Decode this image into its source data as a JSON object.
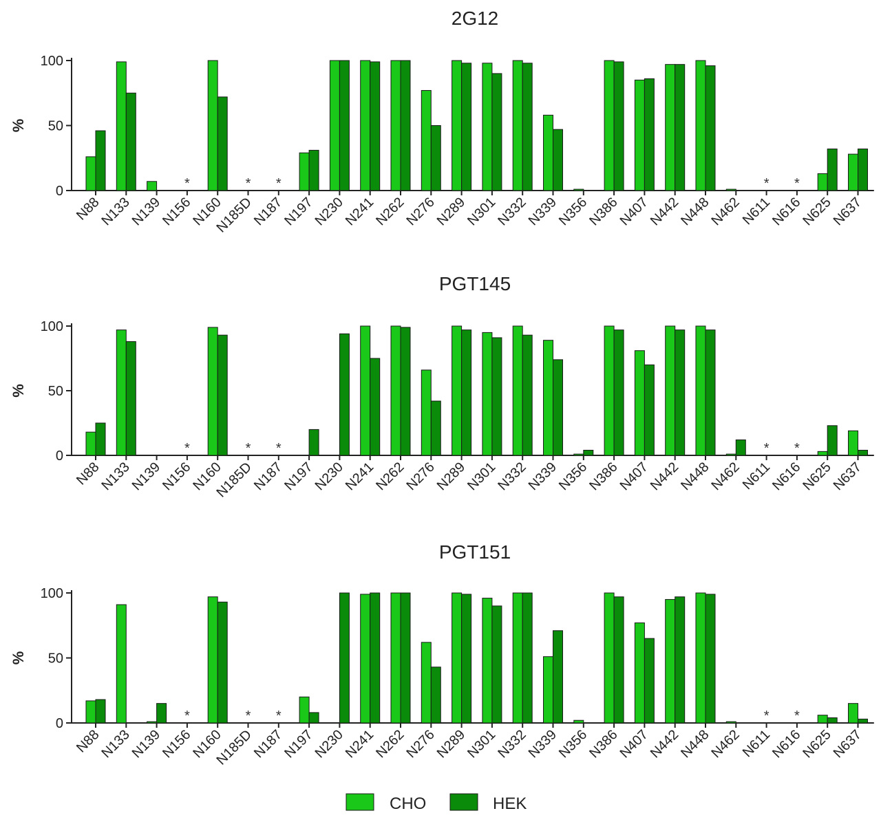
{
  "chart_data": [
    {
      "type": "bar",
      "title": "2G12",
      "ylabel": "%",
      "xlabel": "",
      "ylim": [
        0,
        100
      ],
      "yticks": [
        0,
        50,
        100
      ],
      "categories": [
        "N88",
        "N133",
        "N139",
        "N156",
        "N160",
        "N185D",
        "N187",
        "N197",
        "N230",
        "N241",
        "N262",
        "N276",
        "N289",
        "N301",
        "N332",
        "N339",
        "N356",
        "N386",
        "N407",
        "N442",
        "N448",
        "N462",
        "N611",
        "N616",
        "N625",
        "N637"
      ],
      "series": [
        {
          "name": "CHO",
          "values": [
            26,
            99,
            7,
            0,
            100,
            0,
            0,
            29,
            100,
            100,
            100,
            77,
            100,
            98,
            100,
            58,
            1,
            100,
            85,
            97,
            100,
            1,
            0,
            0,
            13,
            28
          ]
        },
        {
          "name": "HEK",
          "values": [
            46,
            75,
            0,
            0,
            72,
            0,
            0,
            31,
            100,
            99,
            100,
            50,
            98,
            90,
            98,
            47,
            0,
            99,
            86,
            97,
            96,
            0,
            0,
            0,
            32,
            32
          ]
        }
      ],
      "annotations": [
        {
          "category": "N156",
          "text": "*"
        },
        {
          "category": "N185D",
          "text": "*"
        },
        {
          "category": "N187",
          "text": "*"
        },
        {
          "category": "N611",
          "text": "*"
        },
        {
          "category": "N616",
          "text": "*"
        }
      ]
    },
    {
      "type": "bar",
      "title": "PGT145",
      "ylabel": "%",
      "xlabel": "",
      "ylim": [
        0,
        100
      ],
      "yticks": [
        0,
        50,
        100
      ],
      "categories": [
        "N88",
        "N133",
        "N139",
        "N156",
        "N160",
        "N185D",
        "N187",
        "N197",
        "N230",
        "N241",
        "N262",
        "N276",
        "N289",
        "N301",
        "N332",
        "N339",
        "N356",
        "N386",
        "N407",
        "N442",
        "N448",
        "N462",
        "N611",
        "N616",
        "N625",
        "N637"
      ],
      "series": [
        {
          "name": "CHO",
          "values": [
            18,
            97,
            0,
            0,
            99,
            0,
            0,
            0,
            0,
            100,
            100,
            66,
            100,
            95,
            100,
            89,
            1,
            100,
            81,
            100,
            100,
            1,
            0,
            0,
            3,
            19
          ]
        },
        {
          "name": "HEK",
          "values": [
            25,
            88,
            0,
            0,
            93,
            0,
            0,
            20,
            94,
            75,
            99,
            42,
            97,
            91,
            93,
            74,
            4,
            97,
            70,
            97,
            97,
            12,
            0,
            0,
            23,
            4
          ]
        }
      ],
      "annotations": [
        {
          "category": "N156",
          "text": "*"
        },
        {
          "category": "N185D",
          "text": "*"
        },
        {
          "category": "N187",
          "text": "*"
        },
        {
          "category": "N611",
          "text": "*"
        },
        {
          "category": "N616",
          "text": "*"
        }
      ]
    },
    {
      "type": "bar",
      "title": "PGT151",
      "ylabel": "%",
      "xlabel": "",
      "ylim": [
        0,
        100
      ],
      "yticks": [
        0,
        50,
        100
      ],
      "categories": [
        "N88",
        "N133",
        "N139",
        "N156",
        "N160",
        "N185D",
        "N187",
        "N197",
        "N230",
        "N241",
        "N262",
        "N276",
        "N289",
        "N301",
        "N332",
        "N339",
        "N356",
        "N386",
        "N407",
        "N442",
        "N448",
        "N462",
        "N611",
        "N616",
        "N625",
        "N637"
      ],
      "series": [
        {
          "name": "CHO",
          "values": [
            17,
            91,
            1,
            0,
            97,
            0,
            0,
            20,
            0,
            99,
            100,
            62,
            100,
            96,
            100,
            51,
            2,
            100,
            77,
            95,
            100,
            1,
            0,
            0,
            6,
            15
          ]
        },
        {
          "name": "HEK",
          "values": [
            18,
            0,
            15,
            0,
            93,
            0,
            0,
            8,
            100,
            100,
            100,
            43,
            99,
            90,
            100,
            71,
            0,
            97,
            65,
            97,
            99,
            0,
            0,
            0,
            4,
            3
          ]
        }
      ],
      "annotations": [
        {
          "category": "N156",
          "text": "*"
        },
        {
          "category": "N185D",
          "text": "*"
        },
        {
          "category": "N187",
          "text": "*"
        },
        {
          "category": "N611",
          "text": "*"
        },
        {
          "category": "N616",
          "text": "*"
        }
      ]
    }
  ],
  "legend": {
    "position": "bottom-center",
    "items": [
      {
        "label": "CHO",
        "color": "#19c819"
      },
      {
        "label": "HEK",
        "color": "#0a8c0a"
      }
    ]
  },
  "colors": {
    "CHO": "#19c819",
    "HEK": "#0a8c0a",
    "axis": "#222222"
  }
}
